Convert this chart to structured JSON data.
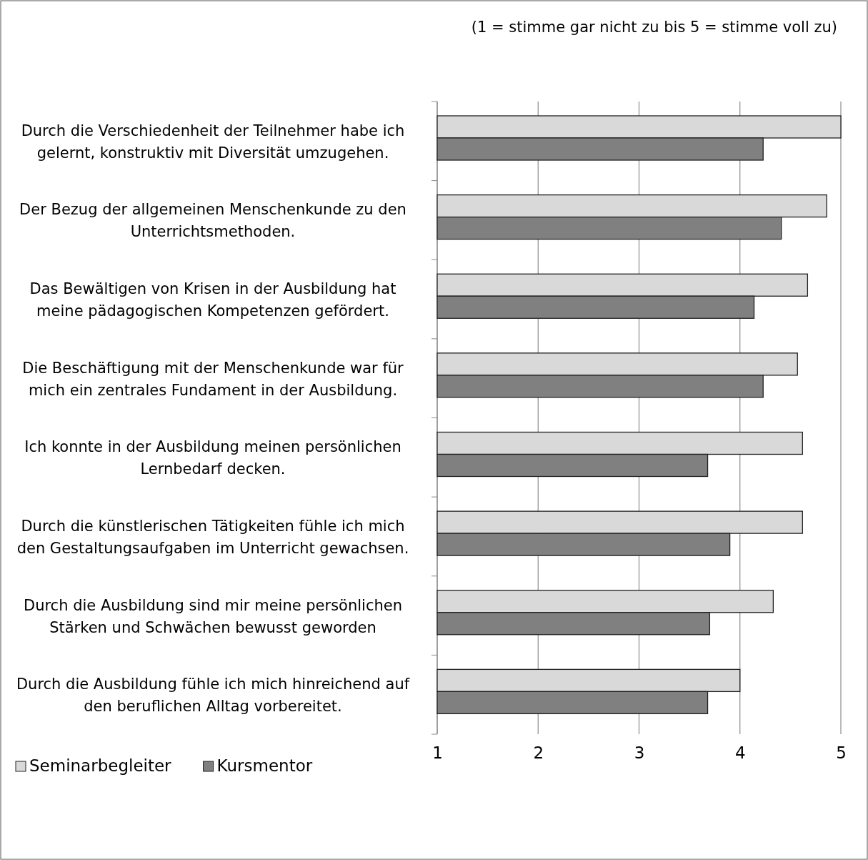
{
  "chart_data": {
    "type": "bar",
    "orientation": "horizontal",
    "subtitle": "(1 = stimme gar nicht zu bis 5 = stimme voll zu)",
    "categories": [
      "Durch die Verschiedenheit der Teilnehmer habe ich gelernt, konstruktiv mit Diversität umzugehen.",
      "Der Bezug der allgemeinen Menschenkunde zu den Unterrichtsmethoden.",
      "Das Bewältigen von Krisen in der Ausbildung hat meine pädagogischen Kompetenzen gefördert.",
      "Die Beschäftigung mit der Menschenkunde war für mich ein zentrales Fundament in der Ausbildung.",
      "Ich konnte in der Ausbildung meinen persönlichen Lernbedarf decken.",
      "Durch die künstlerischen Tätigkeiten fühle ich mich den Gestaltungsaufgaben im Unterricht gewachsen.",
      "Durch die Ausbildung sind mir meine persönlichen Stärken und Schwächen bewusst geworden",
      "Durch die Ausbildung fühle ich mich hinreichend auf den beruflichen Alltag vorbereitet."
    ],
    "series": [
      {
        "name": "Seminarbegleiter",
        "color": "#d9d9d9",
        "values": [
          5.0,
          4.86,
          4.67,
          4.57,
          4.62,
          4.62,
          4.33,
          4.0
        ]
      },
      {
        "name": "Kursmentor",
        "color": "#808080",
        "values": [
          4.23,
          4.41,
          4.14,
          4.23,
          3.68,
          3.9,
          3.7,
          3.68
        ]
      }
    ],
    "xlim": [
      1,
      5
    ],
    "xticks": [
      1,
      2,
      3,
      4,
      5
    ],
    "grid": "x",
    "legend": "bottom"
  }
}
